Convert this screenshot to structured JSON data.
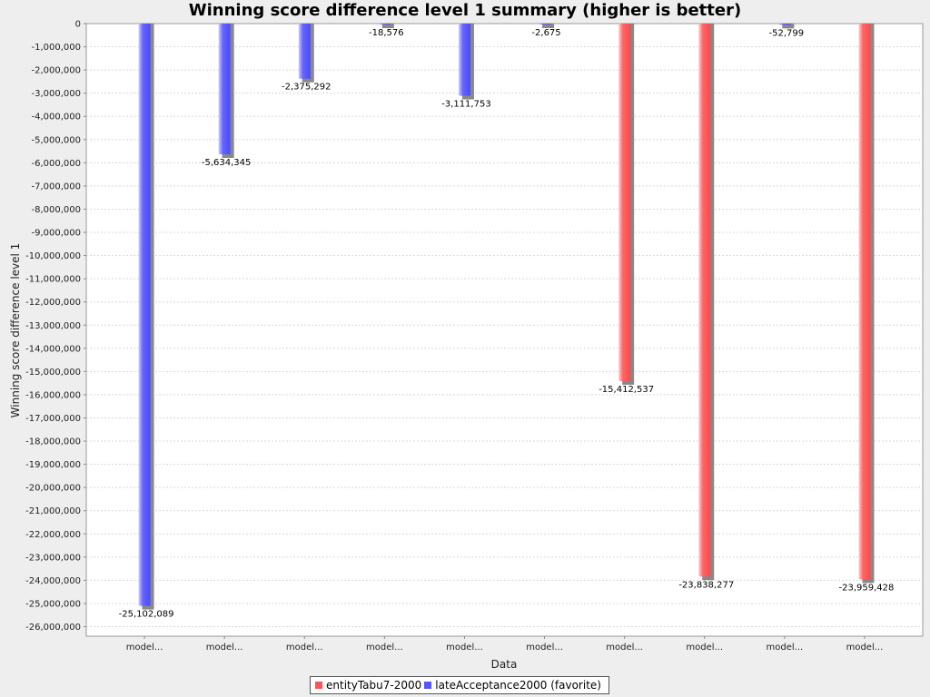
{
  "chart_data": {
    "type": "bar",
    "title": "Winning score difference level 1 summary (higher is better)",
    "xlabel": "Data",
    "ylabel": "Winning score difference level 1",
    "ylim": [
      -26500000,
      0
    ],
    "y_ticks": [
      0,
      -1000000,
      -2000000,
      -3000000,
      -4000000,
      -5000000,
      -6000000,
      -7000000,
      -8000000,
      -9000000,
      -10000000,
      -11000000,
      -12000000,
      -13000000,
      -14000000,
      -15000000,
      -16000000,
      -17000000,
      -18000000,
      -19000000,
      -20000000,
      -21000000,
      -22000000,
      -23000000,
      -24000000,
      -25000000,
      -26000000
    ],
    "y_tick_labels": [
      "0",
      "-1,000,000",
      "-2,000,000",
      "-3,000,000",
      "-4,000,000",
      "-5,000,000",
      "-6,000,000",
      "-7,000,000",
      "-8,000,000",
      "-9,000,000",
      "-10,000,000",
      "-11,000,000",
      "-12,000,000",
      "-13,000,000",
      "-14,000,000",
      "-15,000,000",
      "-16,000,000",
      "-17,000,000",
      "-18,000,000",
      "-19,000,000",
      "-20,000,000",
      "-21,000,000",
      "-22,000,000",
      "-23,000,000",
      "-24,000,000",
      "-25,000,000",
      "-26,000,000"
    ],
    "grid": true,
    "legend_position": "bottom",
    "categories": [
      "model...",
      "model...",
      "model...",
      "model...",
      "model...",
      "model...",
      "model...",
      "model...",
      "model...",
      "model..."
    ],
    "bars": [
      {
        "series": "lateAcceptance2000 (favorite)",
        "value": -25102089,
        "label": "-25,102,089"
      },
      {
        "series": "lateAcceptance2000 (favorite)",
        "value": -5634345,
        "label": "-5,634,345"
      },
      {
        "series": "lateAcceptance2000 (favorite)",
        "value": -2375292,
        "label": "-2,375,292"
      },
      {
        "series": "lateAcceptance2000 (favorite)",
        "value": -18576,
        "label": "-18,576"
      },
      {
        "series": "lateAcceptance2000 (favorite)",
        "value": -3111753,
        "label": "-3,111,753"
      },
      {
        "series": "lateAcceptance2000 (favorite)",
        "value": -2675,
        "label": "-2,675"
      },
      {
        "series": "entityTabu7-2000",
        "value": -15412537,
        "label": "-15,412,537"
      },
      {
        "series": "entityTabu7-2000",
        "value": -23838277,
        "label": "-23,838,277"
      },
      {
        "series": "lateAcceptance2000 (favorite)",
        "value": -52799,
        "label": "-52,799"
      },
      {
        "series": "entityTabu7-2000",
        "value": -23959428,
        "label": "-23,959,428"
      }
    ],
    "series": [
      {
        "name": "entityTabu7-2000",
        "color": "#ff5555"
      },
      {
        "name": "lateAcceptance2000 (favorite)",
        "color": "#5555ff"
      }
    ]
  }
}
